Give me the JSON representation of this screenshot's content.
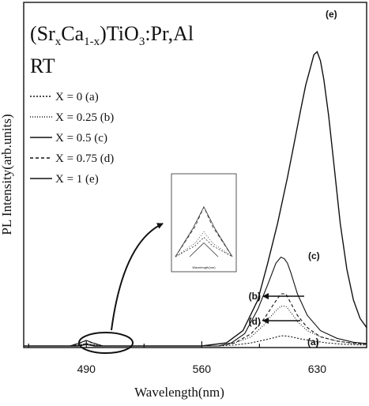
{
  "chart_data": {
    "type": "line",
    "xlabel": "Wavelength(nm)",
    "ylabel": "PL Intensity(arb.units)",
    "x_ticks": [
      490,
      560,
      630
    ],
    "xlim": [
      452,
      660
    ],
    "ylim": [
      0,
      100
    ],
    "annotation": {
      "formula": {
        "base1": "(Sr",
        "sub1": "x",
        "mid": "Ca",
        "sub2": "1-x",
        "base2": ")TiO",
        "sub3": "3",
        "tail": ":Pr,Al"
      },
      "condition": "RT"
    },
    "series": [
      {
        "name": "X = 0 (a)",
        "tag": "(a)",
        "dash": "2,2",
        "x": [
          452,
          480,
          487,
          490,
          493,
          500,
          570,
          580,
          590,
          600,
          606,
          608,
          610,
          612,
          615,
          620,
          628,
          636,
          645,
          652,
          660
        ],
        "y": [
          0,
          0,
          0.4,
          0.7,
          0.4,
          0,
          0,
          0.3,
          1,
          2.2,
          3,
          3.3,
          3.3,
          3.2,
          2.9,
          2.3,
          1.6,
          1,
          0.6,
          0.4,
          0.3
        ]
      },
      {
        "name": "X = 0.25 (b)",
        "tag": "(b)",
        "dash": "1,2",
        "x": [
          452,
          480,
          487,
          490,
          493,
          500,
          570,
          580,
          590,
          598,
          604,
          608,
          611,
          614,
          618,
          624,
          632,
          642,
          652,
          660
        ],
        "y": [
          0,
          0,
          0.5,
          0.9,
          0.5,
          0,
          0,
          1,
          3,
          7,
          11,
          13,
          13,
          11,
          8,
          5,
          3,
          1.6,
          0.8,
          0.5
        ]
      },
      {
        "name": "X = 0.5 (c)",
        "tag": "(c)",
        "dash": "",
        "x": [
          452,
          480,
          486,
          490,
          494,
          500,
          570,
          578,
          586,
          594,
          600,
          605,
          608,
          610,
          612,
          614,
          618,
          624,
          632,
          642,
          652,
          660
        ],
        "y": [
          0,
          0,
          1,
          1.8,
          1,
          0,
          0,
          1,
          4,
          12,
          20,
          27,
          29,
          28.5,
          27,
          24,
          17,
          10,
          5,
          2.5,
          1.2,
          0.8
        ]
      },
      {
        "name": "X = 0.75 (d)",
        "tag": "(d)",
        "dash": "4,3",
        "x": [
          452,
          480,
          487,
          490,
          493,
          500,
          570,
          580,
          590,
          598,
          604,
          608,
          611,
          614,
          618,
          624,
          632,
          642,
          652,
          660
        ],
        "y": [
          0,
          0,
          1.1,
          1.8,
          1.1,
          0,
          0,
          1,
          4,
          9,
          14,
          17,
          17,
          14,
          10,
          6,
          3,
          1.6,
          0.9,
          0.6
        ]
      },
      {
        "name": "X = 1 (e)",
        "tag": "(e)",
        "dash": "",
        "x": [
          452,
          485,
          490,
          495,
          560,
          575,
          585,
          594,
          600,
          606,
          612,
          616,
          620,
          623,
          626,
          628,
          630,
          632,
          634,
          637,
          640,
          644,
          648,
          652,
          656,
          660
        ],
        "y": [
          0,
          0,
          0.5,
          0,
          0,
          1,
          5,
          15,
          27,
          40,
          55,
          66,
          77,
          85,
          91,
          95,
          96,
          93,
          87,
          75,
          60,
          40,
          25,
          15,
          9,
          6
        ]
      }
    ],
    "inset": {
      "xlabel": "Wavelength(nm)"
    }
  }
}
